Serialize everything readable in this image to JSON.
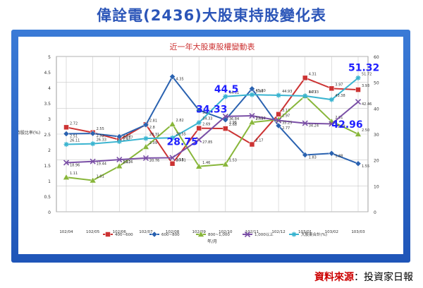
{
  "page": {
    "title": "偉詮電(2436)大股東持股變化表",
    "source_key": "資料來源",
    "source_sep": "：",
    "source_value": "投資家日報"
  },
  "chart_data": {
    "type": "line",
    "title": "近一年大股東股權變動表",
    "ylabel": "持股比率(%)",
    "xlabel": "年/月",
    "categories": [
      "102/04",
      "102/05",
      "102/06",
      "102/07",
      "102/08",
      "102/09",
      "102/10",
      "102/11",
      "102/12",
      "103/01",
      "103/02",
      "103/03"
    ],
    "ylim_left": [
      0,
      5
    ],
    "yticks_left": [
      "0",
      "0.5",
      "1",
      "1.5",
      "2",
      "2.5",
      "3",
      "3.5",
      "4",
      "4.5",
      "5"
    ],
    "ylim_right": [
      0,
      60
    ],
    "yticks_right": [
      "0",
      "10",
      "20",
      "30",
      "40",
      "50",
      "60"
    ],
    "series": [
      {
        "name": "400~600",
        "axis": "left",
        "color": "#cc3333",
        "marker": "square",
        "values": [
          2.72,
          2.55,
          2.32,
          2.81,
          1.55,
          2.69,
          2.68,
          2.17,
          3.14,
          4.31,
          3.97,
          3.93
        ],
        "labels": [
          "2.72",
          "2.55",
          "2.32",
          "2.81",
          "1.55",
          "2.69",
          "2.68",
          "2.17",
          "3.14",
          "4.31",
          "3.97",
          "3.93"
        ]
      },
      {
        "name": "600~800",
        "axis": "left",
        "color": "#2a62b0",
        "marker": "diamond",
        "values": [
          2.51,
          2.52,
          2.42,
          2.8,
          4.35,
          3.27,
          2.96,
          3.96,
          2.77,
          1.83,
          1.88,
          1.55
        ],
        "labels": [
          "2.51",
          "2.52",
          "2.42",
          "2.8",
          "4.35",
          "3.27",
          "2.96",
          "3.96",
          "2.77",
          "1.83",
          "1.88",
          "1.55"
        ]
      },
      {
        "name": "800~1,000",
        "axis": "left",
        "color": "#88b63a",
        "marker": "triangle",
        "values": [
          1.11,
          1.01,
          1.47,
          2.09,
          2.82,
          1.46,
          1.53,
          2.88,
          2.97,
          3.73,
          2.91,
          2.5
        ],
        "labels": [
          "1.11",
          "1.01",
          "1.47",
          "2.09",
          "2.82",
          "1.46",
          "1.53",
          "2.88",
          "2.97",
          "3.73",
          "2.91",
          "2.50"
        ]
      },
      {
        "name": "1,000以上",
        "axis": "left",
        "color": "#7a4fa6",
        "marker": "x",
        "values": [
          1.58,
          1.62,
          1.68,
          1.73,
          1.74,
          2.32,
          3.07,
          3.09,
          2.94,
          2.85,
          2.83,
          3.54
        ],
        "labels": [
          "18.96",
          "19.44",
          "20.16",
          "20.76",
          "20.81",
          "27.85",
          "36.84",
          "37.12",
          "35.25",
          "34.24",
          "33.99",
          "42.46"
        ]
      },
      {
        "name": "大股東合計(%)",
        "axis": "left",
        "color": "#3ab4d0",
        "marker": "asterisk",
        "values": [
          2.17,
          2.19,
          2.26,
          2.36,
          2.38,
          2.87,
          3.71,
          3.77,
          3.75,
          3.73,
          3.61,
          4.31
        ],
        "labels": [
          "26.11",
          "26.33",
          "26.77",
          "28.31",
          "28.55",
          "34.33",
          "44.51",
          "45.30",
          "44.93",
          "44.73",
          "43.38",
          "51.72"
        ]
      }
    ],
    "annotations": [
      "28.75",
      "34.33",
      "44.5",
      "42.96",
      "51.32"
    ]
  },
  "legend": {
    "prefix_1": "400~600",
    "prefix_2": "600~800",
    "prefix_3": "800~1,000",
    "prefix_4": "1,000以上",
    "prefix_5": "大股東合計(%)"
  }
}
